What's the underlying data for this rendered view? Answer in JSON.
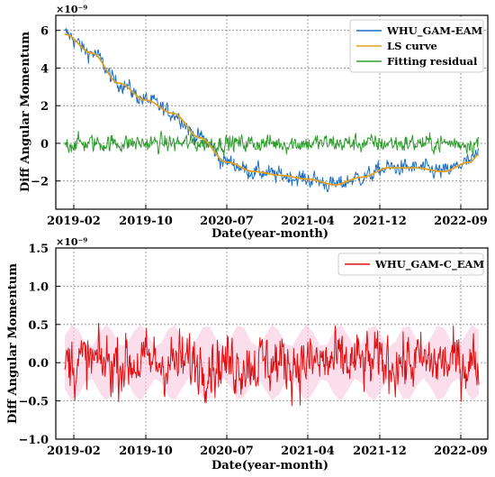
{
  "chart_data": [
    {
      "type": "line",
      "scale_label": "×10⁻⁹",
      "xlabel": "Date(year-month)",
      "ylabel": "Diff Angular Momentum",
      "x_ticks": [
        "2019-02",
        "2019-10",
        "2020-07",
        "2021-04",
        "2021-12",
        "2022-09"
      ],
      "x_range": [
        "2018-12",
        "2022-12"
      ],
      "y_ticks": [
        -2,
        0,
        2,
        4,
        6
      ],
      "y_tick_labels": [
        "−2",
        "0",
        "2",
        "4",
        "6"
      ],
      "ylim": [
        -3.5,
        6.8
      ],
      "grid": true,
      "legend_position": "top-right",
      "series": [
        {
          "name": "WHU_GAM-EAM",
          "color": "#1f6fc4",
          "kind": "noisy_trend",
          "x_start": "2019-01",
          "x_end": "2022-11",
          "noise_amplitude": 0.5
        },
        {
          "name": "LS curve",
          "color": "#e0a020",
          "kind": "trend",
          "x_start": "2019-01",
          "x_end": "2022-11",
          "points": [
            [
              "2019-01",
              5.8
            ],
            [
              "2019-04",
              4.8
            ],
            [
              "2019-07",
              3.2
            ],
            [
              "2019-10",
              2.3
            ],
            [
              "2020-01",
              1.6
            ],
            [
              "2020-04",
              0.3
            ],
            [
              "2020-07",
              -1.0
            ],
            [
              "2020-10",
              -1.5
            ],
            [
              "2021-01",
              -1.7
            ],
            [
              "2021-04",
              -1.9
            ],
            [
              "2021-07",
              -2.2
            ],
            [
              "2021-10",
              -1.8
            ],
            [
              "2022-01",
              -1.3
            ],
            [
              "2022-04",
              -1.3
            ],
            [
              "2022-07",
              -1.5
            ],
            [
              "2022-10",
              -1.0
            ],
            [
              "2022-11",
              -0.6
            ]
          ]
        },
        {
          "name": "Fitting residual",
          "color": "#2e9e2e",
          "kind": "noise",
          "x_start": "2019-01",
          "x_end": "2022-11",
          "center": 0,
          "noise_amplitude": 0.55
        }
      ]
    },
    {
      "type": "line",
      "scale_label": "×10⁻⁹",
      "xlabel": "Date(year-month)",
      "ylabel": "Diff Angular Momentum",
      "x_ticks": [
        "2019-02",
        "2019-10",
        "2020-07",
        "2021-04",
        "2021-12",
        "2022-09"
      ],
      "x_range": [
        "2018-12",
        "2022-12"
      ],
      "y_ticks": [
        -1.0,
        -0.5,
        0.0,
        0.5,
        1.0,
        1.5
      ],
      "y_tick_labels": [
        "−1.0",
        "−0.5",
        "0.0",
        "0.5",
        "1.0",
        "1.5"
      ],
      "ylim": [
        -1.0,
        1.5
      ],
      "grid": true,
      "legend_position": "top-right",
      "series": [
        {
          "name": "WHU_GAM-C_EAM",
          "color": "#e01010",
          "kind": "noise",
          "x_start": "2019-01",
          "x_end": "2022-11",
          "center": 0,
          "noise_amplitude": 0.45,
          "band_color": "#f7c8e0"
        }
      ]
    }
  ]
}
